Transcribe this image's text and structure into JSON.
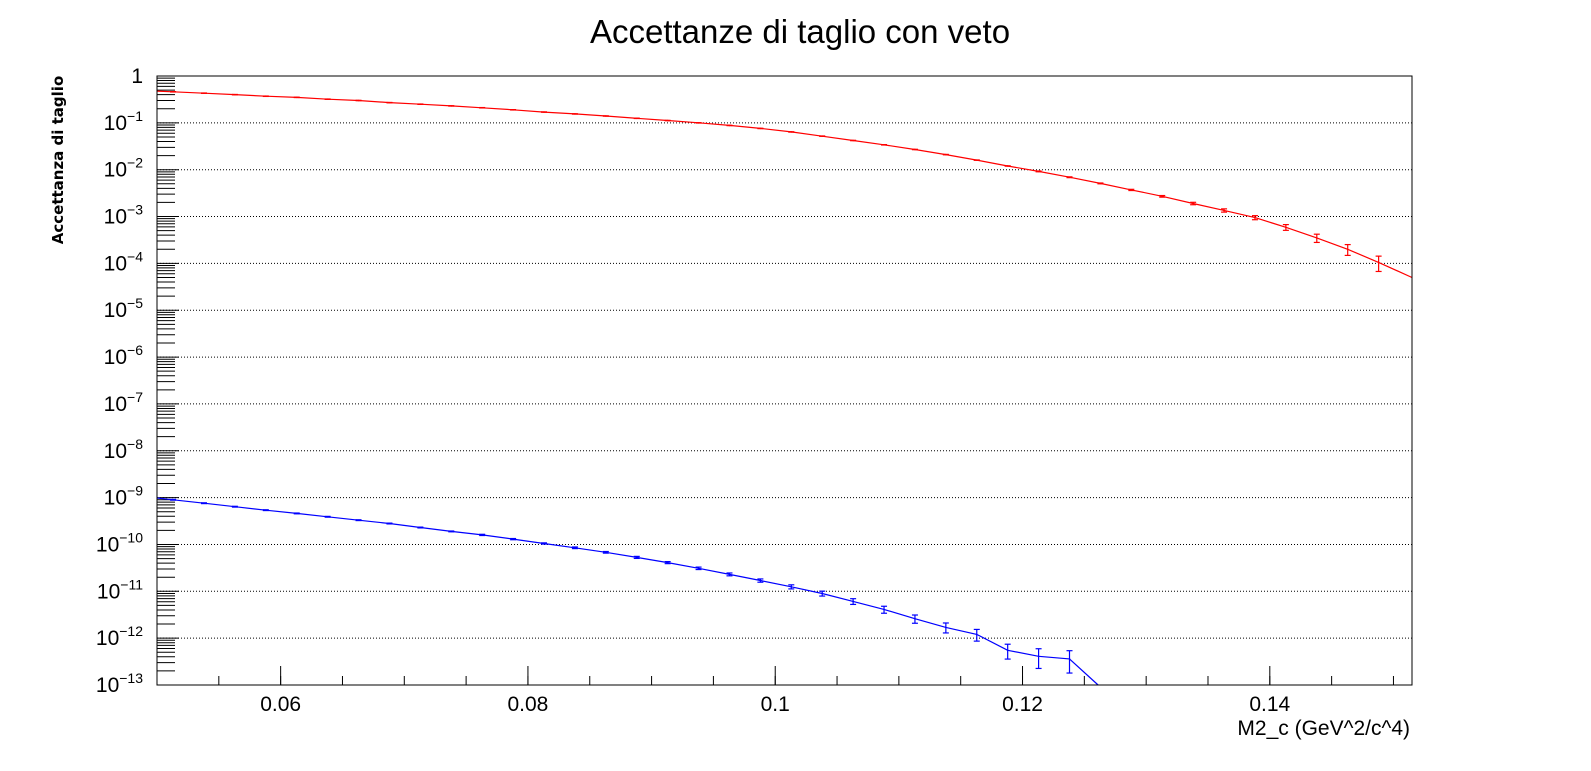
{
  "chart_data": {
    "type": "line",
    "title": "Accettanze di taglio con veto",
    "xlabel": "M2_c (GeV^2/c^4)",
    "ylabel": "Accettanza di taglio",
    "xlim": [
      0.05,
      0.1515
    ],
    "ylim": [
      1e-13,
      1
    ],
    "yscale": "log",
    "grid": "horizontal dotted at decades",
    "legend": "none",
    "x_ticks": [
      "0.06",
      "0.08",
      "0.1",
      "0.12",
      "0.14"
    ],
    "x_tick_values": [
      0.06,
      0.08,
      0.1,
      0.12,
      0.14
    ],
    "y_tick_exponents": [
      0,
      -1,
      -2,
      -3,
      -4,
      -5,
      -6,
      -7,
      -8,
      -9,
      -10,
      -11,
      -12,
      -13
    ],
    "series": [
      {
        "color": "#ff0000",
        "x": [
          0.0513,
          0.0538,
          0.0563,
          0.0588,
          0.0613,
          0.0638,
          0.0663,
          0.0688,
          0.0713,
          0.0738,
          0.0763,
          0.0788,
          0.0813,
          0.0838,
          0.0863,
          0.0888,
          0.0913,
          0.0938,
          0.0963,
          0.0988,
          0.1013,
          0.1038,
          0.1063,
          0.1088,
          0.1113,
          0.1138,
          0.1163,
          0.1188,
          0.1213,
          0.1238,
          0.1263,
          0.1288,
          0.1313,
          0.1338,
          0.1363,
          0.1388,
          0.1413,
          0.1438,
          0.1463,
          0.1488
        ],
        "y": [
          0.46,
          0.43,
          0.4,
          0.37,
          0.35,
          0.32,
          0.3,
          0.27,
          0.25,
          0.23,
          0.21,
          0.19,
          0.17,
          0.155,
          0.14,
          0.125,
          0.112,
          0.1,
          0.088,
          0.076,
          0.064,
          0.052,
          0.042,
          0.034,
          0.027,
          0.021,
          0.016,
          0.012,
          0.0092,
          0.0069,
          0.0051,
          0.0037,
          0.0027,
          0.0019,
          0.00135,
          0.00095,
          0.00059,
          0.00035,
          0.0002,
          0.000105
        ],
        "yerr_rel": [
          0.01,
          0.01,
          0.01,
          0.01,
          0.01,
          0.01,
          0.01,
          0.01,
          0.01,
          0.01,
          0.01,
          0.01,
          0.01,
          0.01,
          0.01,
          0.01,
          0.01,
          0.01,
          0.01,
          0.01,
          0.01,
          0.01,
          0.01,
          0.01,
          0.01,
          0.01,
          0.01,
          0.01,
          0.02,
          0.02,
          0.02,
          0.03,
          0.04,
          0.06,
          0.08,
          0.1,
          0.14,
          0.2,
          0.26,
          0.36
        ],
        "line_end": [
          0.1515,
          5e-05
        ]
      },
      {
        "color": "#0000ff",
        "x": [
          0.0513,
          0.0538,
          0.0563,
          0.0588,
          0.0613,
          0.0638,
          0.0663,
          0.0688,
          0.0713,
          0.0738,
          0.0763,
          0.0788,
          0.0813,
          0.0838,
          0.0863,
          0.0888,
          0.0913,
          0.0938,
          0.0963,
          0.0988,
          0.1013,
          0.1038,
          0.1063,
          0.1088,
          0.1113,
          0.1138,
          0.1163,
          0.1188,
          0.1213,
          0.1238,
          0.1263
        ],
        "y": [
          9e-10,
          7.6e-10,
          6.4e-10,
          5.4e-10,
          4.6e-10,
          3.9e-10,
          3.3e-10,
          2.8e-10,
          2.3e-10,
          1.9e-10,
          1.6e-10,
          1.3e-10,
          1.05e-10,
          8.5e-11,
          6.8e-11,
          5.3e-11,
          4.1e-11,
          3.1e-11,
          2.3e-11,
          1.7e-11,
          1.25e-11,
          9e-12,
          6.1e-12,
          4.1e-12,
          2.6e-12,
          1.7e-12,
          1.2e-12,
          5.5e-13,
          4.1e-13,
          3.6e-13,
          9e-14
        ],
        "yerr_rel": [
          0.02,
          0.02,
          0.02,
          0.02,
          0.02,
          0.02,
          0.02,
          0.02,
          0.02,
          0.02,
          0.03,
          0.03,
          0.03,
          0.04,
          0.04,
          0.05,
          0.05,
          0.06,
          0.07,
          0.08,
          0.1,
          0.12,
          0.14,
          0.17,
          0.2,
          0.24,
          0.28,
          0.35,
          0.45,
          0.5,
          0.5
        ]
      }
    ]
  }
}
